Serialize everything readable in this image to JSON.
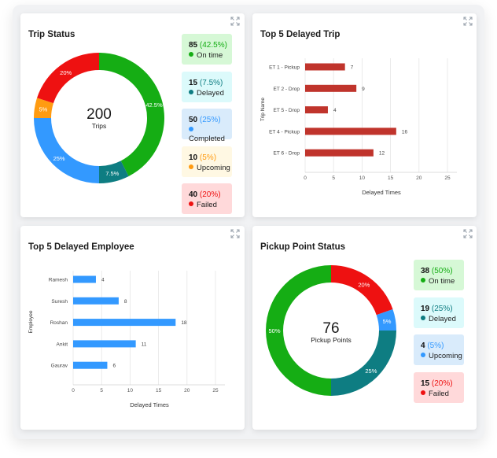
{
  "colors": {
    "green": "#15ad14",
    "teal": "#0e7d82",
    "blue": "#3399ff",
    "orange": "#ff9b11",
    "red": "#ee1111",
    "bar_red": "#c0342c",
    "bar_blue": "#3399ff"
  },
  "trip_status": {
    "title": "Trip Status",
    "total": "200",
    "total_label": "Trips",
    "slice_labels": [
      "42.5%",
      "7.5%",
      "25%",
      "5%",
      "20%"
    ],
    "legend": [
      {
        "count": "85",
        "pct": "(42.5%)",
        "label": "On time",
        "color": "#15ad14",
        "bg": "#d6f8d6"
      },
      {
        "count": "15",
        "pct": "(7.5%)",
        "label": "Delayed",
        "color": "#0e7d82",
        "bg": "#dcfafb"
      },
      {
        "count": "50",
        "pct": "(25%)",
        "label": "Completed",
        "color": "#3399ff",
        "bg": "#d9ebfb"
      },
      {
        "count": "10",
        "pct": "(5%)",
        "label": "Upcoming",
        "color": "#ff9b11",
        "bg": "#fff8e3"
      },
      {
        "count": "40",
        "pct": "(20%)",
        "label": "Failed",
        "color": "#ee1111",
        "bg": "#ffd9da"
      }
    ]
  },
  "delayed_trip": {
    "title": "Top 5 Delayed Trip",
    "y_title": "Trip Name",
    "x_title": "Delayed Times",
    "x_ticks": [
      "0",
      "5",
      "10",
      "15",
      "20",
      "25"
    ],
    "bar_labels": [
      "7",
      "9",
      "4",
      "16",
      "12"
    ]
  },
  "delayed_employee": {
    "title": "Top 5 Delayed Employee",
    "y_title": "Employee",
    "x_title": "Delayed Times",
    "x_ticks": [
      "0",
      "5",
      "10",
      "15",
      "20",
      "25"
    ],
    "bar_labels": [
      "4",
      "8",
      "18",
      "11",
      "6"
    ]
  },
  "pickup_status": {
    "title": "Pickup Point Status",
    "total": "76",
    "total_label": "Pickup Points",
    "slice_labels": [
      "20%",
      "5%",
      "25%",
      "50%"
    ],
    "legend": [
      {
        "count": "38",
        "pct": "(50%)",
        "label": "On time",
        "color": "#15ad14",
        "bg": "#d6f8d6"
      },
      {
        "count": "19",
        "pct": "(25%)",
        "label": "Delayed",
        "color": "#0e7d82",
        "bg": "#dcfafb"
      },
      {
        "count": "4",
        "pct": "(5%)",
        "label": "Upcoming",
        "color": "#3399ff",
        "bg": "#d9ebfb"
      },
      {
        "count": "15",
        "pct": "(20%)",
        "label": "Failed",
        "color": "#ee1111",
        "bg": "#ffd9da"
      }
    ]
  },
  "chart_data": [
    {
      "type": "pie",
      "title": "Trip Status",
      "categories": [
        "On time",
        "Delayed",
        "Completed",
        "Upcoming",
        "Failed"
      ],
      "values": [
        85,
        15,
        50,
        10,
        40
      ],
      "colors": [
        "#15ad14",
        "#0e7d82",
        "#3399ff",
        "#ff9b11",
        "#ee1111"
      ]
    },
    {
      "type": "bar",
      "orientation": "horizontal",
      "title": "Top 5 Delayed Trip",
      "categories": [
        "ET 1 - Pickup",
        "ET 2 - Drop",
        "ET 5 - Drop",
        "ET 4 - Pickup",
        "ET 6 - Drop"
      ],
      "values": [
        7,
        9,
        4,
        16,
        12
      ],
      "xlabel": "Delayed Times",
      "ylabel": "Trip Name",
      "xlim": [
        0,
        25
      ],
      "color": "#c0342c"
    },
    {
      "type": "bar",
      "orientation": "horizontal",
      "title": "Top 5 Delayed Employee",
      "categories": [
        "Ramesh",
        "Suresh",
        "Roshan",
        "Ankit",
        "Gaurav"
      ],
      "values": [
        4,
        8,
        18,
        11,
        6
      ],
      "xlabel": "Delayed Times",
      "ylabel": "Employee",
      "xlim": [
        0,
        25
      ],
      "color": "#3399ff"
    },
    {
      "type": "pie",
      "title": "Pickup Point Status",
      "categories": [
        "Failed",
        "Upcoming",
        "Delayed",
        "On time"
      ],
      "values": [
        15,
        4,
        19,
        38
      ],
      "colors": [
        "#ee1111",
        "#3399ff",
        "#0e7d82",
        "#15ad14"
      ]
    }
  ]
}
